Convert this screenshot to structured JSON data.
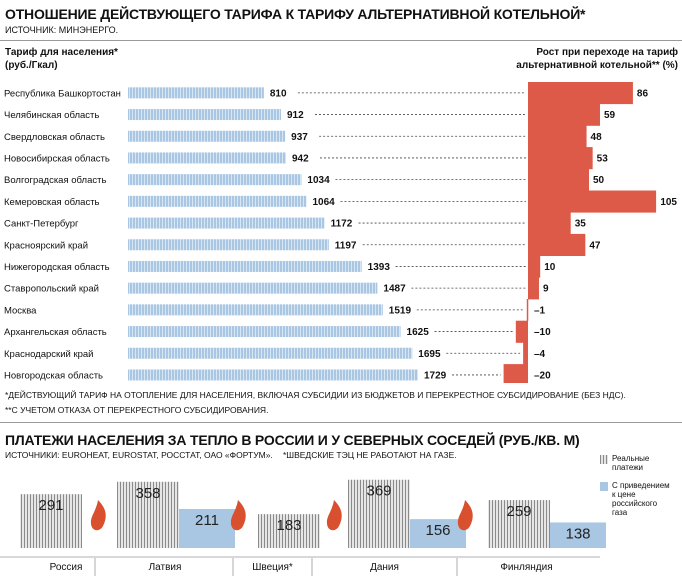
{
  "header1": {
    "title": "ОТНОШЕНИЕ ДЕЙСТВУЮЩЕГО ТАРИФА К ТАРИФУ АЛЬТЕРНАТИВНОЙ КОТЕЛЬНОЙ*",
    "source": "ИСТОЧНИК: МИНЭНЕРГО."
  },
  "left_label_1": "Тариф для населения*",
  "left_label_2": "(руб./Гкал)",
  "right_label_1": "Рост при переходе на тариф",
  "right_label_2": "альтернативной котельной** (%)",
  "footnote1": "*ДЕЙСТВУЮЩИЙ ТАРИФ НА ОТОПЛЕНИЕ ДЛЯ НАСЕЛЕНИЯ, ВКЛЮЧАЯ СУБСИДИИ ИЗ БЮДЖЕТОВ И ПЕРЕКРЕСТНОЕ СУБСИДИРОВАНИЕ (БЕЗ НДС).",
  "footnote2": "**С УЧЕТОМ ОТКАЗА ОТ ПЕРЕКРЕСТНОГО СУБСИДИРОВАНИЯ.",
  "header2": {
    "title": "ПЛАТЕЖИ НАСЕЛЕНИЯ ЗА ТЕПЛО В РОССИИ И У СЕВЕРНЫХ СОСЕДЕЙ (РУБ./КВ. М)",
    "source": "ИСТОЧНИКИ: EUROHEAT, EUROSTAT, РОССТАТ, ОАО «ФОРТУМ».",
    "note": "*ШВЕДСКИЕ ТЭЦ НЕ РАБОТАЮТ НА ГАЗЕ."
  },
  "legend2": {
    "real_1": "Реальные",
    "real_2": "платежи",
    "adj_1": "С приведением",
    "adj_2": "к цене",
    "adj_3": "российского",
    "adj_4": "газа"
  },
  "colors": {
    "bar_blue": "#a9c6e3",
    "bar_red": "#de5a48",
    "hatch": "#8a8a8a",
    "flame": "#d8502e"
  },
  "chart_data": [
    {
      "type": "bar",
      "orientation": "horizontal",
      "categories": [
        "Республика Башкортостан",
        "Челябинская область",
        "Свердловская область",
        "Новосибирская область",
        "Волгоградская область",
        "Кемеровская область",
        "Санкт-Петербург",
        "Красноярский край",
        "Нижегородская область",
        "Ставропольский край",
        "Москва",
        "Архангельская область",
        "Краснодарский край",
        "Новгородская область"
      ],
      "series": [
        {
          "name": "Тариф для населения* (руб./Гкал)",
          "values": [
            810,
            912,
            937,
            942,
            1034,
            1064,
            1172,
            1197,
            1393,
            1487,
            1519,
            1625,
            1695,
            1729
          ]
        },
        {
          "name": "Рост при переходе на тариф альтернативной котельной** (%)",
          "values": [
            86,
            59,
            48,
            53,
            50,
            105,
            35,
            47,
            10,
            9,
            -1,
            -10,
            -4,
            -20
          ]
        }
      ],
      "value_labels": [
        [
          "810",
          "912",
          "937",
          "942",
          "1034",
          "1064",
          "1172",
          "1197",
          "1393",
          "1487",
          "1519",
          "1625",
          "1695",
          "1729"
        ],
        [
          "86",
          "59",
          "48",
          "53",
          "50",
          "105",
          "35",
          "47",
          "10",
          "9",
          "–1",
          "–10",
          "–4",
          "–20"
        ]
      ]
    },
    {
      "type": "bar",
      "categories": [
        "Россия",
        "Латвия",
        "Швеция*",
        "Дания",
        "Финляндия"
      ],
      "series": [
        {
          "name": "Реальные платежи",
          "values": [
            291,
            358,
            183,
            369,
            259
          ]
        },
        {
          "name": "С приведением к цене российского газа",
          "values": [
            null,
            211,
            null,
            156,
            138
          ]
        }
      ],
      "value_labels": [
        [
          "291",
          "358",
          "183",
          "369",
          "259"
        ],
        [
          "",
          "211",
          "",
          "156",
          "138"
        ]
      ]
    }
  ]
}
